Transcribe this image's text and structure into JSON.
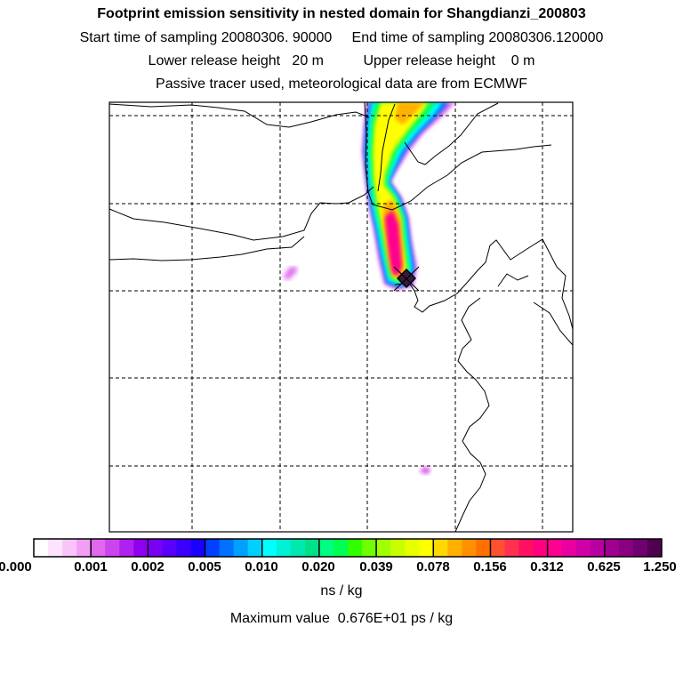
{
  "header": {
    "title": "Footprint emission sensitivity in nested domain for Shangdianzi_200803",
    "line1": "Start time of sampling 20080306. 90000     End time of sampling 20080306.120000",
    "line2": "Lower release height   20 m          Upper release height    0 m",
    "line3": "Passive tracer used, meteorological data are from ECMWF"
  },
  "chart_data": {
    "type": "heatmap",
    "title": "Footprint emission sensitivity in nested domain for Shangdianzi_200803",
    "colorbar": {
      "ticks": [
        "0.000",
        "0.001",
        "0.002",
        "0.005",
        "0.010",
        "0.020",
        "0.039",
        "0.078",
        "0.156",
        "0.312",
        "0.625",
        "1.250"
      ],
      "unit": "ns / kg",
      "colors": [
        "#ffffff",
        "#fde3fd",
        "#f9c4f9",
        "#f29ef5",
        "#df68ee",
        "#cc44ee",
        "#b020f0",
        "#9000f0",
        "#7a00f4",
        "#5a00f8",
        "#3a00fc",
        "#1a00ff",
        "#0040ff",
        "#0070ff",
        "#00a0ff",
        "#00d0ff",
        "#00ffff",
        "#00f0d8",
        "#00e8b0",
        "#00e088",
        "#00ff80",
        "#00ff50",
        "#30ff00",
        "#70ff00",
        "#a0ff00",
        "#c8ff00",
        "#e8ff00",
        "#ffff00",
        "#ffd800",
        "#ffb000",
        "#ff9000",
        "#ff7000",
        "#ff5030",
        "#ff3050",
        "#ff1060",
        "#ff0080",
        "#ff0090",
        "#e800a0",
        "#d000a8",
        "#b800a0",
        "#a00090",
        "#880080",
        "#700070",
        "#500050"
      ]
    },
    "max_value": "Maximum value  0.676E+01 ps / kg",
    "grid": "dashed",
    "receptor": "Shangdianzi",
    "plume": [
      {
        "level": "yellow",
        "color": "#ffff00"
      },
      {
        "level": "orange",
        "color": "#ffb000"
      },
      {
        "level": "magenta",
        "color": "#ff0090"
      },
      {
        "level": "green",
        "color": "#00ff50"
      },
      {
        "level": "cyan",
        "color": "#00ffff"
      },
      {
        "level": "blue",
        "color": "#0070ff"
      },
      {
        "level": "violet",
        "color": "#df68ee"
      }
    ]
  }
}
